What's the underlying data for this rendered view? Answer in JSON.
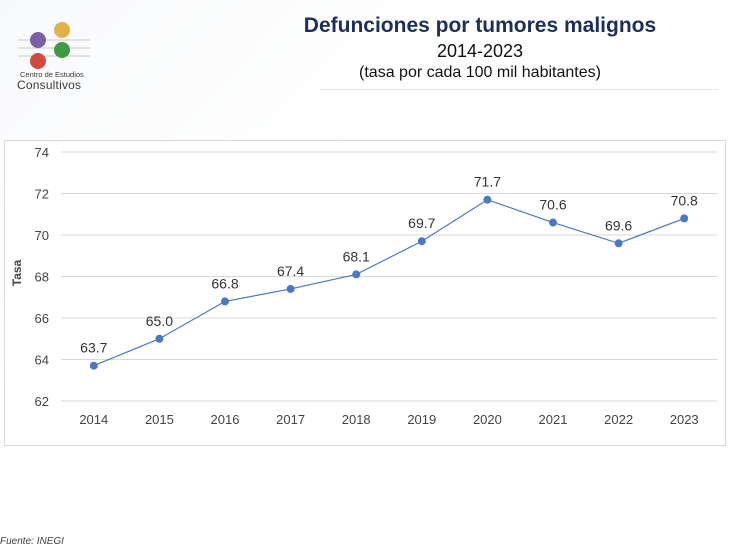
{
  "org": {
    "line1": "Centro de Estudios",
    "line2": "Consultivos",
    "colors": [
      "#7a5fa8",
      "#e0b24a",
      "#3e9a44",
      "#d24a3e"
    ]
  },
  "header": {
    "title": "Defunciones por tumores malignos",
    "period": "2014-2023",
    "unit": "(tasa por cada 100 mil habitantes)"
  },
  "source": "Fuente: INEGI",
  "chart_data": {
    "type": "line",
    "title": "Defunciones por tumores malignos",
    "xlabel": "",
    "ylabel": "Tasa",
    "categories": [
      "2014",
      "2015",
      "2016",
      "2017",
      "2018",
      "2019",
      "2020",
      "2021",
      "2022",
      "2023"
    ],
    "series": [
      {
        "name": "Tasa",
        "values": [
          63.7,
          65.0,
          66.8,
          67.4,
          68.1,
          69.7,
          71.7,
          70.6,
          69.6,
          70.8
        ],
        "labels": [
          "63.7",
          "65.0",
          "66.8",
          "67.4",
          "68.1",
          "69.7",
          "71.7",
          "70.6",
          "69.6",
          "70.8"
        ],
        "color": "#4a78c2"
      }
    ],
    "ylim": [
      62,
      74
    ],
    "yticks": [
      62,
      64,
      66,
      68,
      70,
      72,
      74
    ],
    "grid": true,
    "legend": "none"
  }
}
